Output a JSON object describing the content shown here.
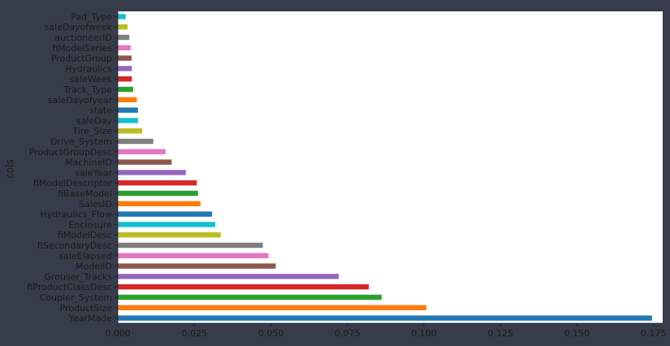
{
  "colors": {
    "background": "#373c4a",
    "plot_area": "#ffffff",
    "text": "#1a1a1a",
    "palette": [
      "#1f77b4",
      "#ff7f0e",
      "#2ca02c",
      "#d62728",
      "#9467bd",
      "#8c564b",
      "#e377c2",
      "#7f7f7f",
      "#bcbd22",
      "#17becf"
    ]
  },
  "chart_data": {
    "type": "bar",
    "orientation": "horizontal",
    "title": "",
    "xlabel": "",
    "ylabel": "cols",
    "xlim": [
      0,
      0.178
    ],
    "grid": false,
    "legend": "none",
    "x_ticks": [
      "0.000",
      "0.025",
      "0.050",
      "0.075",
      "0.100",
      "0.125",
      "0.150",
      "0.175"
    ],
    "categories": [
      "YearMade",
      "ProductSize",
      "Coupler_System",
      "fiProductClassDesc",
      "Grouser_Tracks",
      "ModelID",
      "saleElapsed",
      "fiSecondaryDesc",
      "fiModelDesc",
      "Enclosure",
      "Hydraulics_Flow",
      "SalesID",
      "fiBaseModel",
      "fiModelDescriptor",
      "saleYear",
      "MachineID",
      "ProductGroupDesc",
      "Drive_System",
      "Tire_Size",
      "saleDay",
      "state",
      "saleDayofyear",
      "Track_Type",
      "saleWeek",
      "Hydraulics",
      "ProductGroup",
      "fiModelSeries",
      "auctioneerID",
      "saleDayofweek",
      "Pad_Type"
    ],
    "values": [
      0.1745,
      0.1008,
      0.0862,
      0.082,
      0.0722,
      0.0516,
      0.0492,
      0.0474,
      0.0336,
      0.0318,
      0.0308,
      0.027,
      0.0262,
      0.0258,
      0.0222,
      0.0176,
      0.0156,
      0.0116,
      0.008,
      0.0066,
      0.0066,
      0.0062,
      0.005,
      0.0046,
      0.0046,
      0.0045,
      0.0042,
      0.0038,
      0.0032,
      0.0026
    ]
  }
}
